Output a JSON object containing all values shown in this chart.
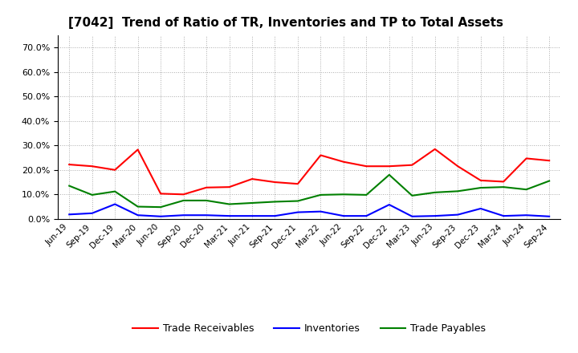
{
  "title": "[7042]  Trend of Ratio of TR, Inventories and TP to Total Assets",
  "x_labels": [
    "Jun-19",
    "Sep-19",
    "Dec-19",
    "Mar-20",
    "Jun-20",
    "Sep-20",
    "Dec-20",
    "Mar-21",
    "Jun-21",
    "Sep-21",
    "Dec-21",
    "Mar-22",
    "Jun-22",
    "Sep-22",
    "Dec-22",
    "Mar-23",
    "Jun-23",
    "Sep-23",
    "Dec-23",
    "Mar-24",
    "Jun-24",
    "Sep-24"
  ],
  "trade_receivables": [
    0.222,
    0.215,
    0.2,
    0.283,
    0.103,
    0.1,
    0.128,
    0.13,
    0.163,
    0.15,
    0.143,
    0.26,
    0.233,
    0.215,
    0.215,
    0.22,
    0.285,
    0.215,
    0.157,
    0.152,
    0.247,
    0.238
  ],
  "inventories": [
    0.018,
    0.023,
    0.06,
    0.015,
    0.01,
    0.015,
    0.015,
    0.012,
    0.012,
    0.012,
    0.027,
    0.03,
    0.012,
    0.012,
    0.058,
    0.01,
    0.012,
    0.017,
    0.042,
    0.012,
    0.015,
    0.01
  ],
  "trade_payables": [
    0.135,
    0.098,
    0.112,
    0.05,
    0.048,
    0.075,
    0.075,
    0.06,
    0.065,
    0.07,
    0.073,
    0.098,
    0.1,
    0.098,
    0.18,
    0.095,
    0.108,
    0.113,
    0.127,
    0.13,
    0.12,
    0.155
  ],
  "colors": {
    "trade_receivables": "#ff0000",
    "inventories": "#0000ff",
    "trade_payables": "#008000"
  },
  "ylim": [
    0.0,
    0.75
  ],
  "yticks": [
    0.0,
    0.1,
    0.2,
    0.3,
    0.4,
    0.5,
    0.6,
    0.7
  ],
  "background_color": "#ffffff",
  "grid_color": "#aaaaaa",
  "line_width": 1.5
}
